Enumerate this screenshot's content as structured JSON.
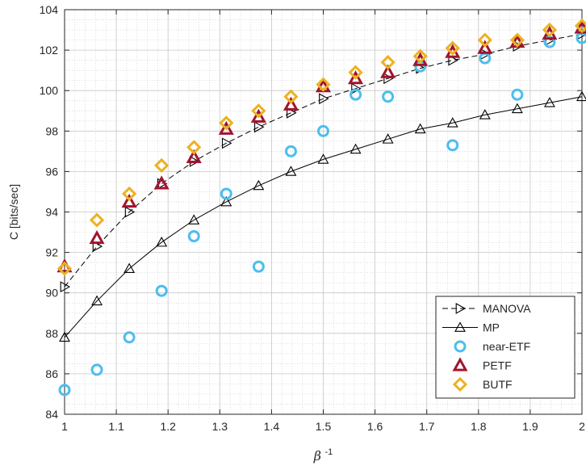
{
  "chart_data": {
    "type": "line",
    "xlabel": "β-1",
    "xlabel_base": "β",
    "xlabel_sup": "-1",
    "ylabel": "C [bits/sec]",
    "xlim": [
      1,
      2
    ],
    "ylim": [
      84,
      104
    ],
    "x_ticks": [
      1,
      1.1,
      1.2,
      1.3,
      1.4,
      1.5,
      1.6,
      1.7,
      1.8,
      1.9,
      2
    ],
    "x_tick_labels": [
      "1",
      "1.1",
      "1.2",
      "1.3",
      "1.4",
      "1.5",
      "1.6",
      "1.7",
      "1.8",
      "1.9",
      "2"
    ],
    "y_ticks": [
      84,
      86,
      88,
      90,
      92,
      94,
      96,
      98,
      100,
      102,
      104
    ],
    "y_tick_labels": [
      "84",
      "86",
      "88",
      "90",
      "92",
      "94",
      "96",
      "98",
      "100",
      "102",
      "104"
    ],
    "grid": true,
    "minor_grid": true,
    "legend_position": "bottom-right",
    "x": [
      1,
      1.0625,
      1.125,
      1.1875,
      1.25,
      1.3125,
      1.375,
      1.4375,
      1.5,
      1.5625,
      1.625,
      1.6875,
      1.75,
      1.8125,
      1.875,
      1.9375,
      2
    ],
    "series": [
      {
        "name": "MANOVA",
        "style": "dashed-line-right-triangle",
        "color": "#000000",
        "values": [
          90.3,
          92.3,
          94.0,
          95.4,
          96.5,
          97.4,
          98.2,
          98.9,
          99.6,
          100.1,
          100.6,
          101.1,
          101.5,
          101.8,
          102.2,
          102.5,
          102.8
        ]
      },
      {
        "name": "MP",
        "style": "solid-line-triangle",
        "color": "#000000",
        "values": [
          87.8,
          89.6,
          91.2,
          92.5,
          93.6,
          94.5,
          95.3,
          96.0,
          96.6,
          97.1,
          97.6,
          98.1,
          98.4,
          98.8,
          99.1,
          99.4,
          99.7
        ]
      },
      {
        "name": "near-ETF",
        "style": "circle",
        "color": "#4DBEEE",
        "values": [
          85.2,
          86.2,
          87.8,
          90.1,
          92.8,
          94.9,
          91.3,
          97.0,
          98.0,
          99.8,
          99.7,
          101.2,
          97.3,
          101.6,
          99.8,
          102.4,
          102.6
        ]
      },
      {
        "name": "PETF",
        "style": "triangle",
        "color": "#A2142F",
        "values": [
          91.3,
          92.7,
          94.5,
          95.4,
          96.7,
          98.1,
          98.7,
          99.3,
          100.2,
          100.6,
          100.9,
          101.5,
          101.9,
          102.1,
          102.4,
          102.8,
          103.1
        ]
      },
      {
        "name": "BUTF",
        "style": "diamond",
        "color": "#EDB120",
        "values": [
          91.2,
          93.6,
          94.9,
          96.3,
          97.2,
          98.4,
          99.0,
          99.7,
          100.3,
          100.9,
          101.4,
          101.7,
          102.1,
          102.5,
          102.5,
          103.0,
          103.2
        ]
      }
    ]
  }
}
